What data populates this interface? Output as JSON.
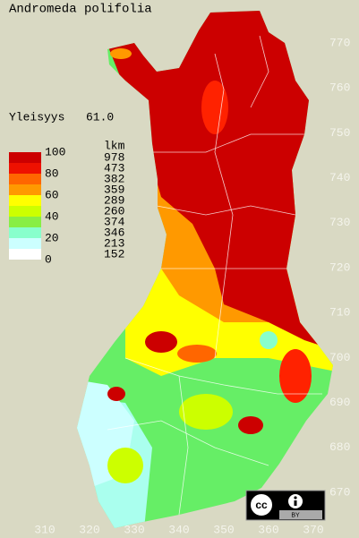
{
  "title": "Andromeda polifolia",
  "frequency": {
    "label": "Yleisyys",
    "value": "61.0"
  },
  "legend": {
    "header": "lkm",
    "levels": [
      "100",
      "80",
      "60",
      "40",
      "20",
      "0"
    ],
    "counts": [
      "978",
      "473",
      "382",
      "359",
      "289",
      "260",
      "374",
      "346",
      "213",
      "152"
    ]
  },
  "y_axis": [
    "770",
    "760",
    "750",
    "740",
    "730",
    "720",
    "710",
    "700",
    "690",
    "680",
    "670"
  ],
  "x_axis": [
    "310",
    "320",
    "330",
    "340",
    "350",
    "360",
    "370"
  ],
  "license": {
    "icon": "cc",
    "badge": "BY"
  }
}
